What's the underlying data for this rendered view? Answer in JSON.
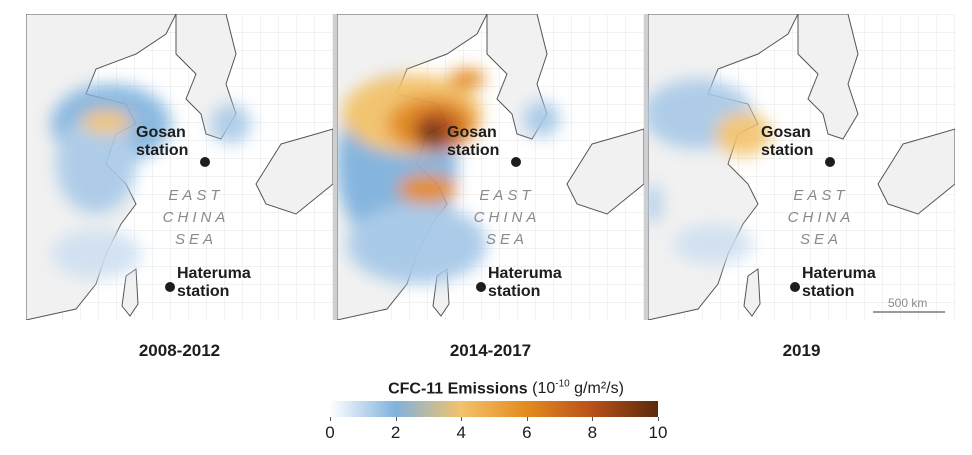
{
  "panels": [
    {
      "period": "2008-2012",
      "gosan": "Gosan station",
      "hateruma": "Hateruma station",
      "sea": [
        "EAST",
        "CHINA",
        "SEA"
      ]
    },
    {
      "period": "2014-2017",
      "gosan": "Gosan station",
      "hateruma": "Hateruma station",
      "sea": [
        "EAST",
        "CHINA",
        "SEA"
      ]
    },
    {
      "period": "2019",
      "gosan": "Gosan station",
      "hateruma": "Hateruma station",
      "sea": [
        "EAST",
        "CHINA",
        "SEA"
      ]
    }
  ],
  "gosan_lines": [
    "Gosan",
    "station"
  ],
  "hateruma_lines": [
    "Hateruma",
    "station"
  ],
  "scale_bar": "500 km",
  "legend": {
    "title_bold": "CFC-11 Emissions",
    "units_prefix": "(10",
    "units_exp": "-10",
    "units_suffix": " g/m²/s)",
    "ticks": [
      "0",
      "2",
      "4",
      "6",
      "8",
      "10"
    ],
    "min": 0,
    "max": 10,
    "colors": [
      "#ffffff",
      "#7fb2de",
      "#f3c26b",
      "#e38a1e",
      "#b8501a",
      "#5a2a0a"
    ]
  }
}
